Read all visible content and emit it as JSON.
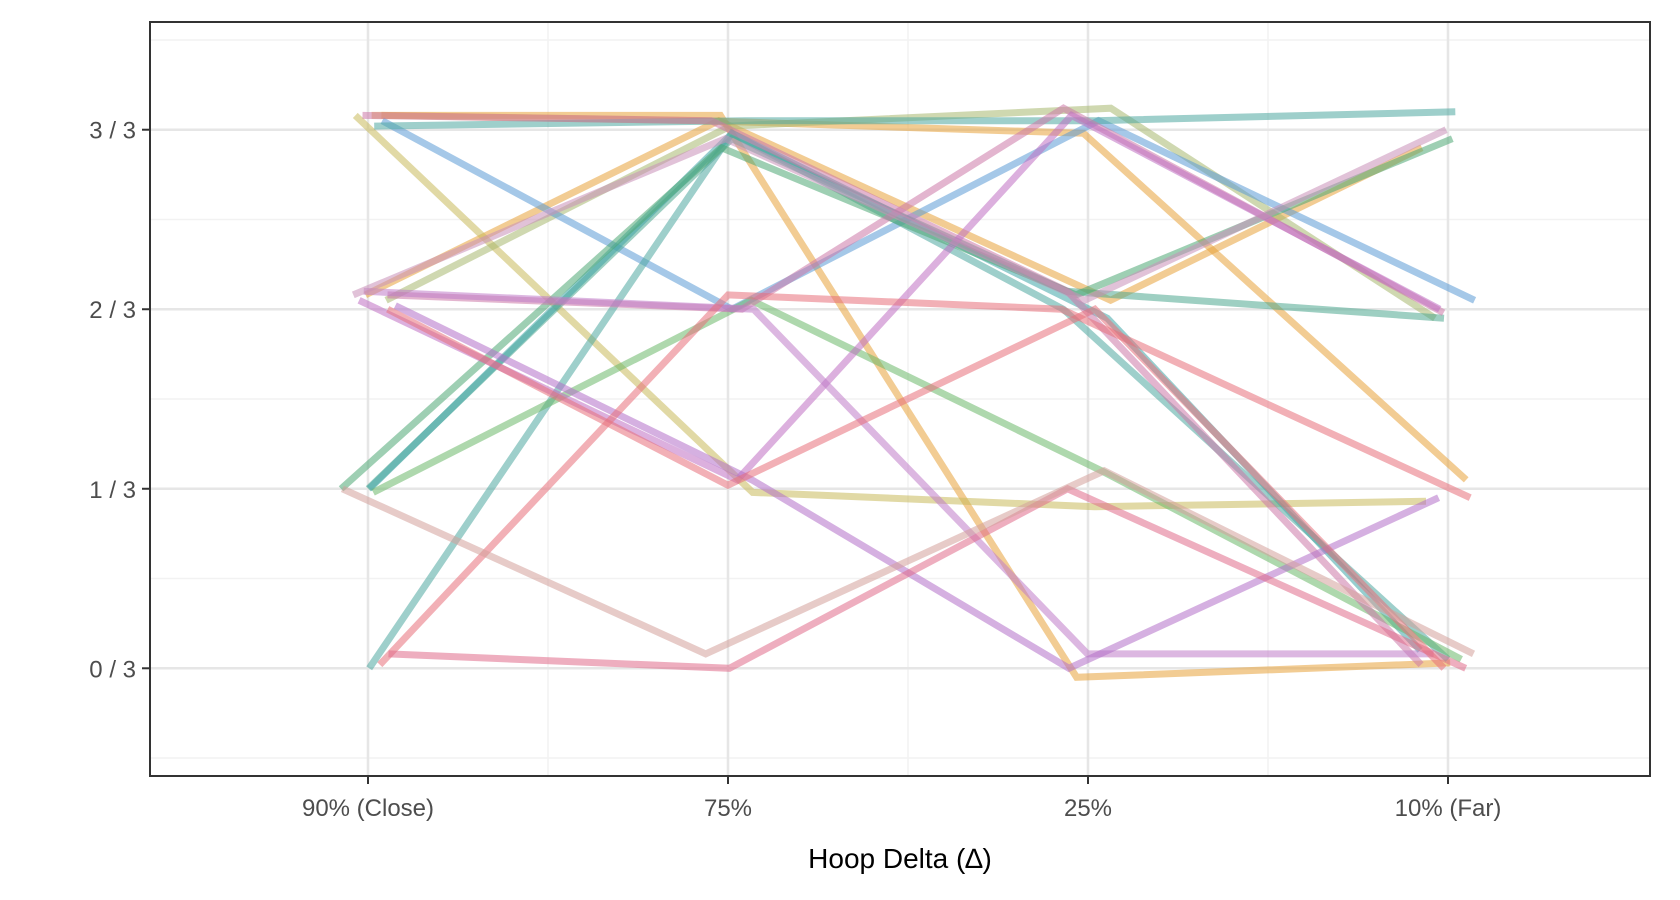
{
  "chart_data": {
    "type": "line",
    "title": "",
    "xlabel": "Hoop Delta (∆)",
    "ylabel": "",
    "categories": [
      "90% (Close)",
      "75%",
      "25%",
      "10% (Far)"
    ],
    "y_ticks": [
      {
        "value": 0,
        "label": "0 / 3"
      },
      {
        "value": 1,
        "label": "1 / 3"
      },
      {
        "value": 2,
        "label": "2 / 3"
      },
      {
        "value": 3,
        "label": "3 / 3"
      }
    ],
    "ylim": [
      -0.6,
      3.6
    ],
    "grid": true,
    "legend": "none",
    "series": [
      {
        "color": "#E8A33A",
        "values": [
          3.08,
          3.05,
          2.98,
          1.05
        ]
      },
      {
        "color": "#E8A33A",
        "values": [
          3.08,
          3.08,
          -0.05,
          0.03
        ]
      },
      {
        "color": "#E8A33A",
        "values": [
          2.08,
          3.05,
          2.05,
          2.9
        ]
      },
      {
        "color": "#C9B95B",
        "values": [
          3.08,
          0.98,
          0.9,
          0.93
        ]
      },
      {
        "color": "#A7B870",
        "values": [
          2.05,
          3.02,
          3.12,
          1.95
        ]
      },
      {
        "color": "#5B9BD5",
        "values": [
          3.05,
          2.0,
          3.05,
          2.05
        ]
      },
      {
        "color": "#4FA88F",
        "values": [
          1.0,
          2.95,
          2.1,
          1.95
        ]
      },
      {
        "color": "#3FA6A8",
        "values": [
          1.0,
          2.98,
          1.95,
          0.1
        ]
      },
      {
        "color": "#4FA8A0",
        "values": [
          0.0,
          2.98,
          2.0,
          0.05
        ]
      },
      {
        "color": "#4FA874",
        "values": [
          1.0,
          2.9,
          2.08,
          2.95
        ]
      },
      {
        "color": "#6BB86A",
        "values": [
          0.98,
          2.05,
          1.1,
          0.05
        ]
      },
      {
        "color": "#4FA8A0",
        "values": [
          3.02,
          3.05,
          3.05,
          3.1
        ]
      },
      {
        "color": "#CC79A7",
        "values": [
          3.08,
          3.05,
          2.1,
          0.02
        ]
      },
      {
        "color": "#CC79A7",
        "values": [
          2.08,
          2.0,
          3.12,
          1.98
        ]
      },
      {
        "color": "#BF6FC2",
        "values": [
          2.05,
          1.05,
          3.08,
          2.0
        ]
      },
      {
        "color": "#C07CC8",
        "values": [
          2.1,
          2.0,
          0.08,
          0.08
        ]
      },
      {
        "color": "#C98FB8",
        "values": [
          2.08,
          2.95,
          2.05,
          3.0
        ]
      },
      {
        "color": "#B36FC8",
        "values": [
          2.02,
          1.05,
          0.0,
          0.95
        ]
      },
      {
        "color": "#E8707A",
        "values": [
          0.02,
          2.08,
          2.0,
          0.95
        ]
      },
      {
        "color": "#E06C8A",
        "values": [
          0.08,
          0.0,
          1.0,
          0.0
        ]
      },
      {
        "color": "#E8707A",
        "values": [
          2.0,
          1.02,
          2.0,
          0.0
        ]
      },
      {
        "color": "#D3A09A",
        "values": [
          1.0,
          0.08,
          1.1,
          0.08
        ]
      }
    ]
  }
}
